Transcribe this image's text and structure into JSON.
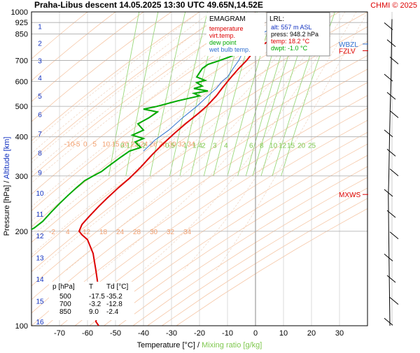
{
  "header": {
    "title": "Praha-Libus   descent   14.05.2025 13:30 UTC  49.65N,14.52E",
    "copyright": "CHMI © 2025"
  },
  "legend": {
    "heading": "EMAGRAM",
    "items": [
      {
        "label": "temperature",
        "color": "#dd0000"
      },
      {
        "label": "virt.temp.",
        "color": "#dd0000"
      },
      {
        "label": "dew point",
        "color": "#00aa00"
      },
      {
        "label": "wet bulb temp.",
        "color": "#3070d0"
      }
    ]
  },
  "lrl": {
    "heading": "LRL:",
    "lines": [
      {
        "text": "alt: 557 m ASL",
        "color": "#1030c0"
      },
      {
        "text": "press: 948.2 hPa",
        "color": "#000000"
      },
      {
        "text": "temp: 18.2 °C",
        "color": "#dd0000"
      },
      {
        "text": "dwpt: -1.0 °C",
        "color": "#00aa00"
      }
    ]
  },
  "table": {
    "headers": [
      "p [hPa]",
      "T",
      "Td [°C]"
    ],
    "rows": [
      [
        "500",
        "-17.5",
        "-35.2"
      ],
      [
        "700",
        "-3.2",
        "-12.8"
      ],
      [
        "850",
        "9.0",
        "-2.4"
      ]
    ]
  },
  "levels": [
    {
      "label": "MXWS",
      "p": 262,
      "color": "#dd0000"
    },
    {
      "label": "FZLV",
      "p": 752,
      "color": "#dd0000"
    },
    {
      "label": "WBZL",
      "p": 790,
      "color": "#3070d0"
    }
  ],
  "chart_data": {
    "type": "line",
    "ylabel_pressure": "Pressure [hPa]",
    "ylabel_separator": " / ",
    "ylabel_altitude": "Altitude [km]",
    "xlabel": "Temperature [°C]",
    "xlabel_separator": " / ",
    "xlabel_mixing": "Mixing ratio [g/kg]",
    "xlim": [
      -80,
      40
    ],
    "ylim_hpa": [
      1000,
      100
    ],
    "pressure_ticks": [
      100,
      200,
      300,
      400,
      500,
      600,
      700,
      850,
      925,
      1000
    ],
    "temperature_ticks": [
      -70,
      -60,
      -50,
      -40,
      -30,
      -20,
      -10,
      0,
      10,
      20,
      30
    ],
    "altitude_ticks_km": [
      {
        "km": 1,
        "p": 900
      },
      {
        "km": 2,
        "p": 795
      },
      {
        "km": 3,
        "p": 700
      },
      {
        "km": 4,
        "p": 617
      },
      {
        "km": 5,
        "p": 540
      },
      {
        "km": 6,
        "p": 472
      },
      {
        "km": 7,
        "p": 410
      },
      {
        "km": 8,
        "p": 356
      },
      {
        "km": 9,
        "p": 308
      },
      {
        "km": 10,
        "p": 265
      },
      {
        "km": 11,
        "p": 227
      },
      {
        "km": 12,
        "p": 194
      },
      {
        "km": 13,
        "p": 165
      },
      {
        "km": 14,
        "p": 141
      },
      {
        "km": 15,
        "p": 120
      },
      {
        "km": 16,
        "p": 103
      }
    ],
    "potential_temp_labels": [
      {
        "p": 200,
        "values": [
          "-2",
          "4",
          "12",
          "18",
          "24",
          "28",
          "30",
          "32",
          "34"
        ]
      },
      {
        "p": 380,
        "values": [
          "-10",
          "-5",
          "0",
          "5",
          "10",
          "15",
          "20",
          "22",
          "24",
          "26",
          "28",
          "30",
          "32",
          "34"
        ]
      }
    ],
    "mixing_ratio_labels": [
      "0.1",
      "0.2",
      "0.5",
      "1",
      "1.4",
      "2",
      "3",
      "4",
      "6",
      "8",
      "10",
      "12",
      "15",
      "20",
      "25"
    ],
    "series": [
      {
        "name": "temperature",
        "color": "#dd0000",
        "points": [
          [
            18.2,
            948
          ],
          [
            16.5,
            930
          ],
          [
            14,
            900
          ],
          [
            11,
            870
          ],
          [
            9,
            850
          ],
          [
            6,
            820
          ],
          [
            3,
            790
          ],
          [
            0,
            760
          ],
          [
            -3.2,
            700
          ],
          [
            -6,
            660
          ],
          [
            -8,
            630
          ],
          [
            -10,
            600
          ],
          [
            -12,
            570
          ],
          [
            -14,
            540
          ],
          [
            -17.5,
            500
          ],
          [
            -21,
            470
          ],
          [
            -25,
            440
          ],
          [
            -29,
            410
          ],
          [
            -33,
            380
          ],
          [
            -37,
            350
          ],
          [
            -41,
            320
          ],
          [
            -45,
            295
          ],
          [
            -49,
            275
          ],
          [
            -53,
            255
          ],
          [
            -56,
            240
          ],
          [
            -59,
            225
          ],
          [
            -61,
            215
          ],
          [
            -62,
            210
          ],
          [
            -63,
            200
          ],
          [
            -62,
            195
          ],
          [
            -60,
            188
          ],
          [
            -58,
            170
          ],
          [
            -57,
            150
          ],
          [
            -56,
            130
          ],
          [
            -56,
            115
          ],
          [
            -57,
            103
          ],
          [
            -56,
            100
          ]
        ]
      },
      {
        "name": "dew point",
        "color": "#00aa00",
        "points": [
          [
            -1,
            948
          ],
          [
            -3,
            925
          ],
          [
            -2,
            900
          ],
          [
            -3,
            880
          ],
          [
            -2.4,
            850
          ],
          [
            -4,
            820
          ],
          [
            -5,
            800
          ],
          [
            -5.5,
            770
          ],
          [
            -6,
            740
          ],
          [
            -9,
            720
          ],
          [
            -12.8,
            700
          ],
          [
            -17,
            680
          ],
          [
            -19,
            660
          ],
          [
            -20,
            640
          ],
          [
            -21,
            620
          ],
          [
            -18,
            605
          ],
          [
            -21,
            595
          ],
          [
            -19,
            580
          ],
          [
            -22,
            570
          ],
          [
            -17,
            560
          ],
          [
            -22,
            550
          ],
          [
            -20,
            540
          ],
          [
            -24,
            530
          ],
          [
            -28,
            520
          ],
          [
            -35.2,
            500
          ],
          [
            -40,
            490
          ],
          [
            -35,
            480
          ],
          [
            -38,
            460
          ],
          [
            -42,
            440
          ],
          [
            -40,
            420
          ],
          [
            -44,
            405
          ],
          [
            -40,
            395
          ],
          [
            -43,
            385
          ],
          [
            -41,
            370
          ],
          [
            -45,
            360
          ],
          [
            -48,
            345
          ],
          [
            -53,
            320
          ],
          [
            -55,
            310
          ],
          [
            -58,
            300
          ],
          [
            -61,
            290
          ],
          [
            -64,
            275
          ],
          [
            -67,
            260
          ],
          [
            -70,
            245
          ],
          [
            -73,
            230
          ],
          [
            -76,
            215
          ],
          [
            -79,
            205
          ],
          [
            -82,
            198
          ]
        ]
      },
      {
        "name": "wet bulb temp.",
        "color": "#3070d0",
        "points": [
          [
            8,
            948
          ],
          [
            6,
            900
          ],
          [
            4,
            870
          ],
          [
            2,
            850
          ],
          [
            0,
            820
          ],
          [
            -2,
            790
          ],
          [
            -4,
            760
          ],
          [
            -6,
            700
          ],
          [
            -8,
            660
          ],
          [
            -10,
            620
          ],
          [
            -12,
            600
          ],
          [
            -14,
            570
          ],
          [
            -17,
            540
          ],
          [
            -21,
            500
          ],
          [
            -26,
            460
          ],
          [
            -31,
            420
          ],
          [
            -36,
            390
          ],
          [
            -40,
            360
          ]
        ]
      }
    ],
    "wind_profile": {
      "color": "#000000",
      "points": [
        [
          0,
          948
        ],
        [
          10,
          850
        ],
        [
          20,
          700
        ],
        [
          30,
          600
        ],
        [
          50,
          500
        ],
        [
          70,
          400
        ],
        [
          90,
          300
        ],
        [
          105,
          260
        ],
        [
          95,
          200
        ],
        [
          80,
          150
        ],
        [
          60,
          100
        ]
      ]
    }
  }
}
